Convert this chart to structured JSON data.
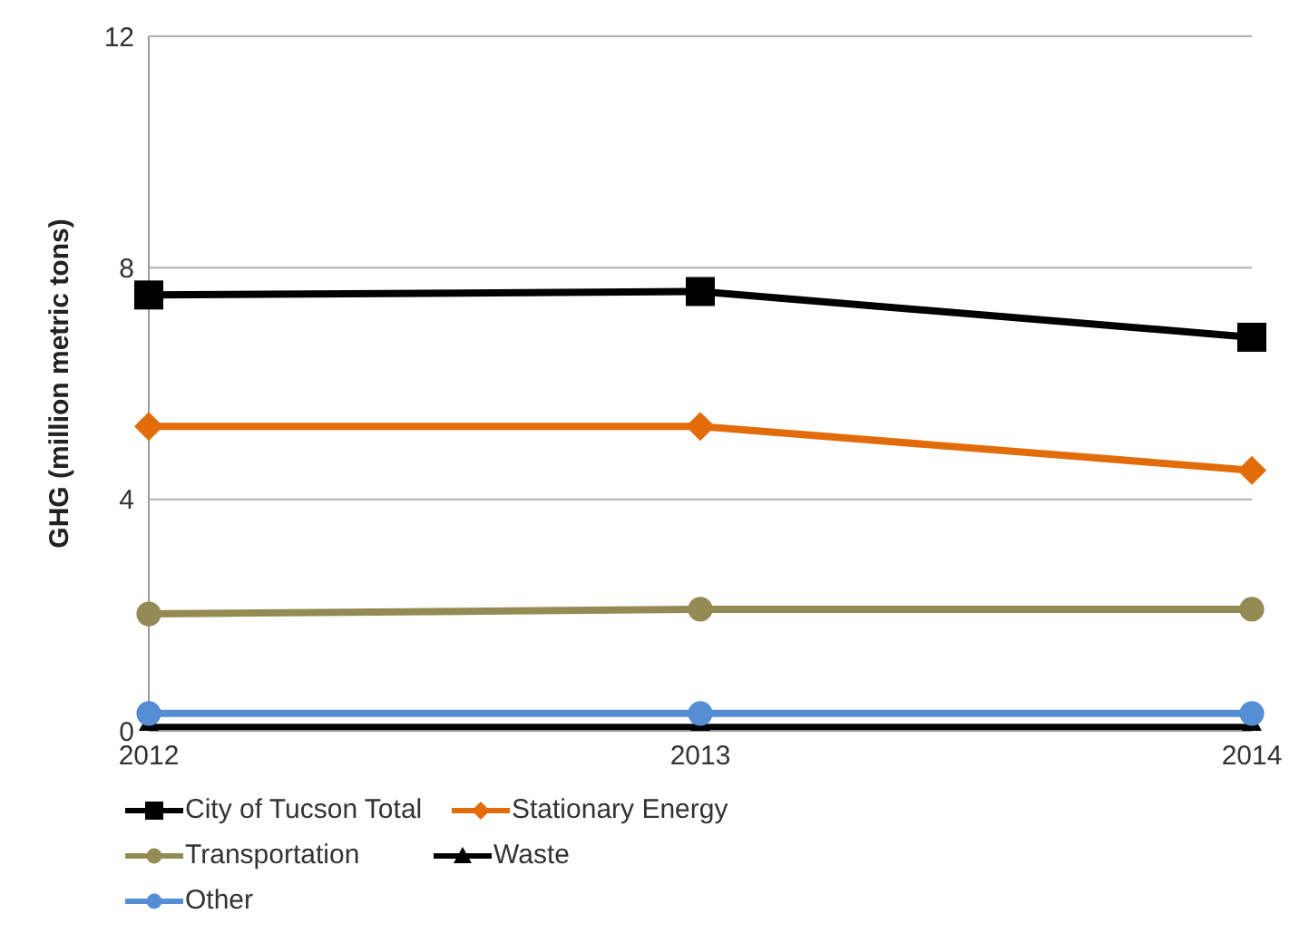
{
  "chart_data": {
    "type": "line",
    "ylabel": "GHG (million metric tons)",
    "categories": [
      "2012",
      "2013",
      "2014"
    ],
    "series": [
      {
        "name": "City of Tucson Total",
        "color": "#000000",
        "marker": "square",
        "values": [
          7.53,
          7.59,
          6.8
        ]
      },
      {
        "name": "Stationary Energy",
        "color": "#e36c0a",
        "marker": "diamond",
        "values": [
          5.26,
          5.26,
          4.5
        ]
      },
      {
        "name": "Transportation",
        "color": "#948a54",
        "marker": "circle",
        "values": [
          2.02,
          2.1,
          2.1
        ]
      },
      {
        "name": "Waste",
        "color": "#000000",
        "marker": "triangle",
        "values": [
          0.06,
          0.06,
          0.06
        ]
      },
      {
        "name": "Other",
        "color": "#558ed5",
        "marker": "circle",
        "values": [
          0.3,
          0.3,
          0.3
        ]
      }
    ],
    "ylim": [
      0,
      12
    ],
    "yticks": [
      0,
      4,
      8,
      12
    ],
    "grid": "y",
    "legend": "bottom"
  }
}
